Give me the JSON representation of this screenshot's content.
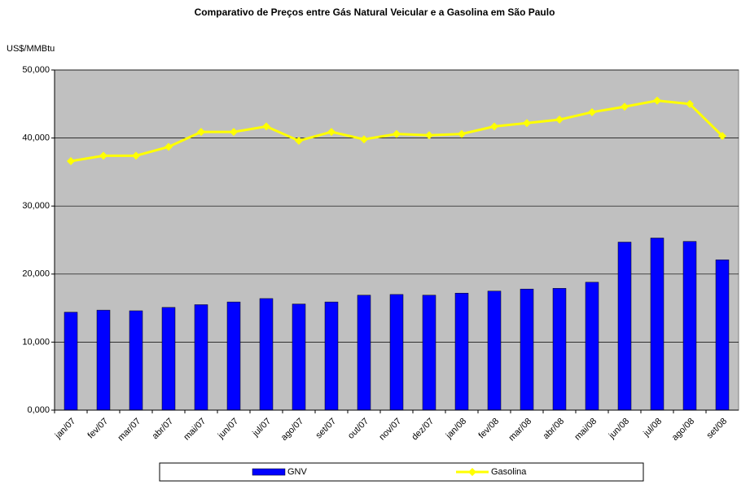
{
  "chart_data": {
    "type": "bar",
    "title": "Comparativo de Preços entre Gás Natural Veicular e a Gasolina em São Paulo",
    "y_label": "US$/MMBtu",
    "categories": [
      "jan/07",
      "fev/07",
      "mar/07",
      "abr/07",
      "mai/07",
      "jun/07",
      "jul/07",
      "ago/07",
      "set/07",
      "out/07",
      "nov/07",
      "dez/07",
      "jan/08",
      "fev/08",
      "mar/08",
      "abr/08",
      "mai/08",
      "jun/08",
      "jul/08",
      "ago/08",
      "set/08"
    ],
    "series": [
      {
        "name": "GNV",
        "type": "bar",
        "color": "#0000ff",
        "values": [
          14.4,
          14.7,
          14.6,
          15.1,
          15.5,
          15.9,
          16.4,
          15.6,
          15.9,
          16.9,
          17.0,
          16.9,
          17.2,
          17.5,
          17.8,
          17.9,
          18.8,
          24.7,
          25.3,
          24.8,
          22.1
        ]
      },
      {
        "name": "Gasolina",
        "type": "line",
        "color": "#ffff00",
        "values": [
          36.6,
          37.4,
          37.4,
          38.7,
          40.9,
          40.9,
          41.7,
          39.6,
          40.9,
          39.8,
          40.6,
          40.4,
          40.6,
          41.7,
          42.2,
          42.7,
          43.8,
          44.6,
          45.5,
          45.0,
          40.3
        ]
      }
    ],
    "ylim": [
      0,
      50
    ],
    "yticks": [
      {
        "value": 0,
        "label": "0,000"
      },
      {
        "value": 10,
        "label": "10,000"
      },
      {
        "value": 20,
        "label": "20,000"
      },
      {
        "value": 30,
        "label": "30,000"
      },
      {
        "value": 40,
        "label": "40,000"
      },
      {
        "value": 50,
        "label": "50,000"
      }
    ],
    "grid": true,
    "legend": "bottom",
    "plot_background": "#c0c0c0"
  }
}
